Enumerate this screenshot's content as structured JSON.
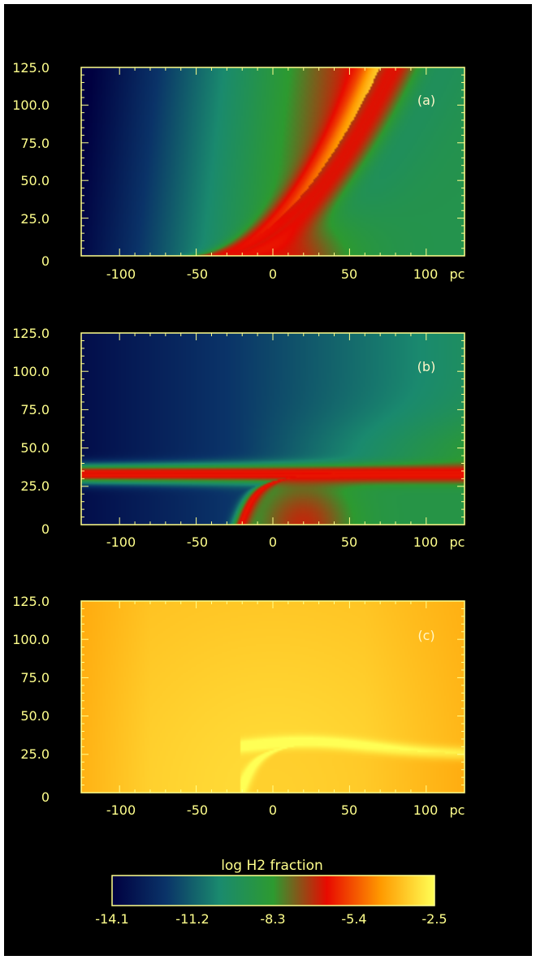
{
  "figure": {
    "colors": {
      "background": "#000000",
      "axis": "#ffff8c",
      "colormap": [
        "#000040",
        "#0a3368",
        "#1a8a6e",
        "#2d9a30",
        "#e80a00",
        "#ff9a00",
        "#ffff55"
      ]
    }
  },
  "chart_data": [
    {
      "type": "heatmap",
      "panel_label": "(a)",
      "quantity": "log H2 fraction",
      "xlim": [
        -125,
        125
      ],
      "ylim": [
        0,
        125
      ],
      "x_ticks": [
        "-100",
        "-50",
        "0",
        "50",
        "100"
      ],
      "x_unit": "pc",
      "y_ticks": [
        "0",
        "25.0",
        "50.0",
        "75.0",
        "100.0",
        "125.0"
      ],
      "features": {
        "shell_vertex_x": -48,
        "shell_x_at_top": 70,
        "shell_peak_value": -6.5,
        "central_peak": {
          "x": 0,
          "y": 0,
          "value": -6.5
        },
        "far_left_value": -13.8,
        "inside_shell_value": -9.2
      }
    },
    {
      "type": "heatmap",
      "panel_label": "(b)",
      "quantity": "log H2 fraction",
      "xlim": [
        -125,
        125
      ],
      "ylim": [
        0,
        125
      ],
      "x_ticks": [
        "-100",
        "-50",
        "0",
        "50",
        "100"
      ],
      "x_unit": "pc",
      "y_ticks": [
        "0",
        "25.0",
        "50.0",
        "75.0",
        "100.0",
        "125.0"
      ],
      "features": {
        "shell_vertex_x": -21,
        "shell_asymptote_y": 34,
        "shell_peak_value": -6.2,
        "central_peak": {
          "x": 20,
          "y": 5,
          "value": -6.8
        },
        "far_left_value": -13.6,
        "bottom_right_value": -9.0
      }
    },
    {
      "type": "heatmap",
      "panel_label": "(c)",
      "quantity": "log H2 fraction",
      "xlim": [
        -125,
        125
      ],
      "ylim": [
        0,
        125
      ],
      "x_ticks": [
        "-100",
        "-50",
        "0",
        "50",
        "100"
      ],
      "x_unit": "pc",
      "y_ticks": [
        "0",
        "25.0",
        "50.0",
        "75.0",
        "100.0",
        "125.0"
      ],
      "features": {
        "shell_vertex_x": -21,
        "shell_asymptote_y": 25,
        "shell_peak_value": -2.6,
        "background_value": -3.8,
        "far_left_value": -4.3
      }
    }
  ],
  "colorbar": {
    "title": "log H2 fraction",
    "min": -14.1,
    "max": -2.5,
    "ticks": [
      "-14.1",
      "-11.2",
      "-8.3",
      "-5.4",
      "-2.5"
    ]
  }
}
